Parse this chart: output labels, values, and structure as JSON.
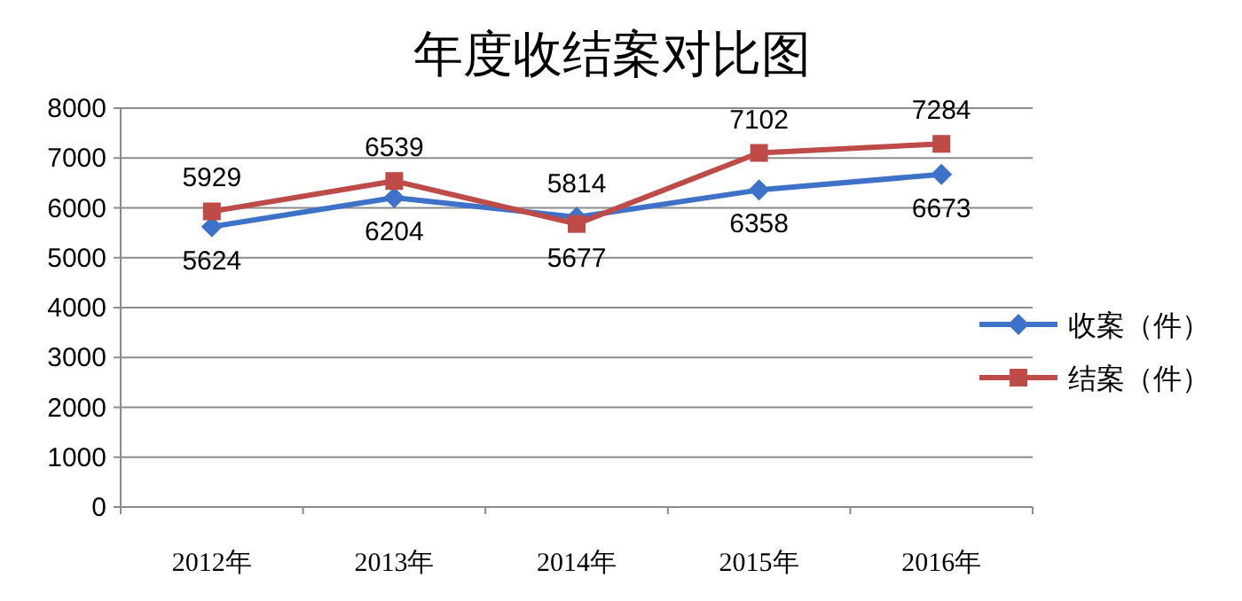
{
  "chart_data": {
    "type": "line",
    "title": "年度收结案对比图",
    "categories": [
      "2012年",
      "2013年",
      "2014年",
      "2015年",
      "2016年"
    ],
    "series": [
      {
        "name": "收案（件）",
        "color": "#3d72c8",
        "marker": "diamond",
        "values": [
          5624,
          6204,
          5814,
          6358,
          6673
        ]
      },
      {
        "name": "结案（件）",
        "color": "#be4b48",
        "marker": "square",
        "values": [
          5929,
          6539,
          5677,
          7102,
          7284
        ]
      }
    ],
    "ylim": [
      0,
      8000
    ],
    "yticks": [
      0,
      1000,
      2000,
      3000,
      4000,
      5000,
      6000,
      7000,
      8000
    ],
    "grid": "y",
    "legend": "right",
    "data_labels": true
  }
}
